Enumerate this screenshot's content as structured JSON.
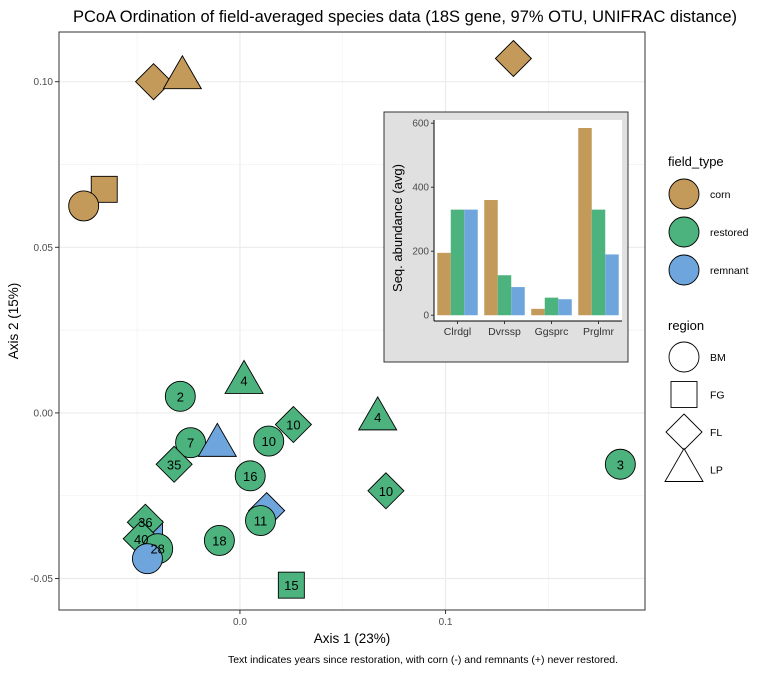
{
  "colors": {
    "corn": "#C49A5A",
    "restored": "#4DB37E",
    "remnant": "#6EA5DC",
    "grid": "#EBEBEB",
    "panel_border": "#333333",
    "inset_bg": "#E0E0E0"
  },
  "chart_data": [
    {
      "type": "scatter",
      "title": "PCoA Ordination of field-averaged species data (18S gene, 97% OTU, UNIFRAC distance)",
      "xlabel": "Axis 1 (23%)",
      "ylabel": "Axis 2 (15%)",
      "xlim": [
        -0.088,
        0.197
      ],
      "ylim": [
        -0.0595,
        0.115
      ],
      "xticks": [
        0.0,
        0.1
      ],
      "xtick_labels": [
        "0.0",
        "0.1"
      ],
      "yticks": [
        -0.05,
        0.0,
        0.05,
        0.1
      ],
      "ytick_labels": [
        "-0.05",
        "0.00",
        "0.05",
        "0.10"
      ],
      "grid": true,
      "caption": "Text indicates years since restoration, with corn (-) and remnants (+) never restored.",
      "legend_color": {
        "title": "field_type",
        "entries": [
          {
            "label": "corn",
            "key": "corn"
          },
          {
            "label": "restored",
            "key": "restored"
          },
          {
            "label": "remnant",
            "key": "remnant"
          }
        ]
      },
      "legend_shape": {
        "title": "region",
        "entries": [
          {
            "label": "BM",
            "shape": "circle"
          },
          {
            "label": "FG",
            "shape": "square"
          },
          {
            "label": "FL",
            "shape": "diamond"
          },
          {
            "label": "LP",
            "shape": "triangle"
          }
        ]
      },
      "points": [
        {
          "x": -0.066,
          "y": 0.0675,
          "field_type": "corn",
          "region": "FG",
          "label": ""
        },
        {
          "x": -0.076,
          "y": 0.0625,
          "field_type": "corn",
          "region": "BM",
          "label": ""
        },
        {
          "x": -0.042,
          "y": 0.1,
          "field_type": "corn",
          "region": "FL",
          "label": ""
        },
        {
          "x": -0.028,
          "y": 0.1015,
          "field_type": "corn",
          "region": "LP",
          "label": ""
        },
        {
          "x": 0.133,
          "y": 0.107,
          "field_type": "corn",
          "region": "FL",
          "label": ""
        },
        {
          "x": -0.029,
          "y": 0.005,
          "field_type": "restored",
          "region": "BM",
          "label": "2"
        },
        {
          "x": 0.002,
          "y": 0.0095,
          "field_type": "restored",
          "region": "LP",
          "label": "4"
        },
        {
          "x": 0.067,
          "y": -0.0015,
          "field_type": "restored",
          "region": "LP",
          "label": "4"
        },
        {
          "x": 0.026,
          "y": -0.0035,
          "field_type": "restored",
          "region": "FL",
          "label": "10"
        },
        {
          "x": 0.014,
          "y": -0.0085,
          "field_type": "restored",
          "region": "BM",
          "label": "10"
        },
        {
          "x": -0.024,
          "y": -0.009,
          "field_type": "restored",
          "region": "BM",
          "label": "7"
        },
        {
          "x": -0.032,
          "y": -0.0155,
          "field_type": "restored",
          "region": "FL",
          "label": "35"
        },
        {
          "x": 0.005,
          "y": -0.019,
          "field_type": "restored",
          "region": "BM",
          "label": "16"
        },
        {
          "x": 0.071,
          "y": -0.0235,
          "field_type": "restored",
          "region": "FL",
          "label": "10"
        },
        {
          "x": 0.185,
          "y": -0.0155,
          "field_type": "restored",
          "region": "BM",
          "label": "3"
        },
        {
          "x": -0.011,
          "y": -0.0095,
          "field_type": "remnant",
          "region": "LP",
          "label": ""
        },
        {
          "x": 0.013,
          "y": -0.0295,
          "field_type": "remnant",
          "region": "FL",
          "label": ""
        },
        {
          "x": 0.01,
          "y": -0.0325,
          "field_type": "restored",
          "region": "BM",
          "label": "11"
        },
        {
          "x": -0.01,
          "y": -0.0385,
          "field_type": "restored",
          "region": "BM",
          "label": "18"
        },
        {
          "x": -0.044,
          "y": -0.0365,
          "field_type": "remnant",
          "region": "FG",
          "label": ""
        },
        {
          "x": -0.046,
          "y": -0.033,
          "field_type": "restored",
          "region": "FL",
          "label": "36"
        },
        {
          "x": -0.048,
          "y": -0.038,
          "field_type": "restored",
          "region": "FL",
          "label": "40"
        },
        {
          "x": -0.04,
          "y": -0.041,
          "field_type": "restored",
          "region": "BM",
          "label": "28"
        },
        {
          "x": -0.045,
          "y": -0.044,
          "field_type": "remnant",
          "region": "BM",
          "label": ""
        },
        {
          "x": 0.025,
          "y": -0.052,
          "field_type": "restored",
          "region": "FG",
          "label": "15"
        }
      ]
    },
    {
      "type": "bar",
      "xlabel": "",
      "ylabel": "Seq. abundance (avg)",
      "categories": [
        "Clrdgl",
        "Dvrssp",
        "Ggsprc",
        "Prglmr"
      ],
      "ylim": [
        -18,
        610
      ],
      "yticks": [
        0,
        200,
        400,
        600
      ],
      "ytick_labels": [
        "0",
        "200",
        "400",
        "600"
      ],
      "grid": false,
      "series": [
        {
          "name": "corn",
          "key": "corn",
          "values": [
            195,
            360,
            20,
            585
          ]
        },
        {
          "name": "restored",
          "key": "restored",
          "values": [
            330,
            125,
            55,
            330
          ]
        },
        {
          "name": "remnant",
          "key": "remnant",
          "values": [
            330,
            88,
            50,
            190
          ]
        }
      ]
    }
  ]
}
